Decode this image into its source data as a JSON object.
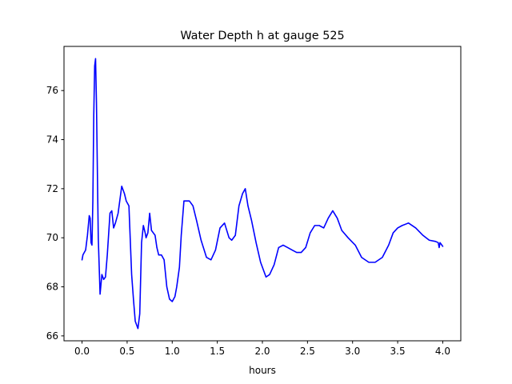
{
  "chart_data": {
    "type": "line",
    "title": "Water Depth h at gauge 525",
    "xlabel": "hours",
    "ylabel": "",
    "xlim": [
      -0.2,
      4.2
    ],
    "ylim": [
      65.8,
      77.8
    ],
    "xticks": [
      0.0,
      0.5,
      1.0,
      1.5,
      2.0,
      2.5,
      3.0,
      3.5,
      4.0
    ],
    "xtick_labels": [
      "0.0",
      "0.5",
      "1.0",
      "1.5",
      "2.0",
      "2.5",
      "3.0",
      "3.5",
      "4.0"
    ],
    "yticks": [
      66,
      68,
      70,
      72,
      74,
      76
    ],
    "ytick_labels": [
      "66",
      "68",
      "70",
      "72",
      "74",
      "76"
    ],
    "grid": false,
    "legend": "none",
    "series": [
      {
        "color": "#0000ff",
        "x": [
          0.0,
          0.01,
          0.04,
          0.06,
          0.08,
          0.09,
          0.1,
          0.11,
          0.12,
          0.13,
          0.14,
          0.15,
          0.16,
          0.18,
          0.2,
          0.22,
          0.24,
          0.26,
          0.28,
          0.31,
          0.33,
          0.35,
          0.37,
          0.4,
          0.44,
          0.47,
          0.49,
          0.52,
          0.55,
          0.57,
          0.59,
          0.62,
          0.64,
          0.66,
          0.68,
          0.7,
          0.71,
          0.73,
          0.75,
          0.77,
          0.79,
          0.81,
          0.83,
          0.85,
          0.88,
          0.91,
          0.94,
          0.97,
          1.0,
          1.03,
          1.05,
          1.08,
          1.1,
          1.13,
          1.16,
          1.19,
          1.23,
          1.27,
          1.32,
          1.38,
          1.43,
          1.48,
          1.53,
          1.58,
          1.63,
          1.66,
          1.7,
          1.74,
          1.78,
          1.81,
          1.84,
          1.88,
          1.93,
          1.98,
          2.04,
          2.08,
          2.13,
          2.18,
          2.23,
          2.28,
          2.33,
          2.38,
          2.43,
          2.48,
          2.53,
          2.58,
          2.63,
          2.68,
          2.73,
          2.78,
          2.83,
          2.88,
          2.95,
          3.03,
          3.1,
          3.18,
          3.25,
          3.33,
          3.4,
          3.45,
          3.5,
          3.55,
          3.62,
          3.7,
          3.78,
          3.85,
          3.92,
          3.95,
          3.96,
          3.97,
          3.98,
          4.0
        ],
        "y": [
          69.1,
          69.3,
          69.5,
          70.1,
          70.9,
          70.8,
          69.8,
          69.7,
          71.5,
          75.0,
          77.0,
          77.3,
          75.5,
          70.0,
          67.7,
          68.5,
          68.3,
          68.4,
          69.3,
          71.0,
          71.1,
          70.4,
          70.6,
          71.0,
          72.1,
          71.8,
          71.5,
          71.3,
          68.5,
          67.5,
          66.6,
          66.3,
          66.9,
          69.8,
          70.5,
          70.2,
          70.0,
          70.2,
          71.0,
          70.3,
          70.2,
          70.1,
          69.6,
          69.3,
          69.3,
          69.1,
          68.0,
          67.5,
          67.4,
          67.6,
          68.0,
          68.8,
          70.1,
          71.5,
          71.5,
          71.5,
          71.3,
          70.7,
          69.9,
          69.2,
          69.1,
          69.5,
          70.4,
          70.6,
          70.0,
          69.9,
          70.1,
          71.3,
          71.8,
          72.0,
          71.3,
          70.7,
          69.8,
          69.0,
          68.4,
          68.5,
          68.9,
          69.6,
          69.7,
          69.6,
          69.5,
          69.4,
          69.4,
          69.6,
          70.2,
          70.5,
          70.5,
          70.4,
          70.8,
          71.1,
          70.8,
          70.3,
          70.0,
          69.7,
          69.2,
          69.0,
          69.0,
          69.2,
          69.7,
          70.2,
          70.4,
          70.5,
          70.6,
          70.4,
          70.1,
          69.9,
          69.85,
          69.8,
          69.6,
          69.8,
          69.75,
          69.65
        ]
      }
    ]
  }
}
